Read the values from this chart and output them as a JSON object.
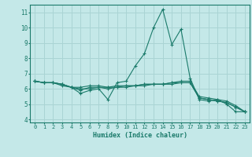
{
  "xlabel": "Humidex (Indice chaleur)",
  "xlim": [
    -0.5,
    23.5
  ],
  "ylim": [
    3.8,
    11.5
  ],
  "xticks": [
    0,
    1,
    2,
    3,
    4,
    5,
    6,
    7,
    8,
    9,
    10,
    11,
    12,
    13,
    14,
    15,
    16,
    17,
    18,
    19,
    20,
    21,
    22,
    23
  ],
  "yticks": [
    4,
    5,
    6,
    7,
    8,
    9,
    10,
    11
  ],
  "bg_color": "#c4e8e8",
  "grid_color": "#aad4d4",
  "line_color": "#1a7a6a",
  "series": [
    [
      6.5,
      6.4,
      6.4,
      6.2,
      6.1,
      5.7,
      5.9,
      6.0,
      5.3,
      6.4,
      6.5,
      7.5,
      8.3,
      10.0,
      11.2,
      8.9,
      9.9,
      6.7,
      5.3,
      5.2,
      5.3,
      5.0,
      4.5,
      4.5
    ],
    [
      6.5,
      6.4,
      6.4,
      6.3,
      6.1,
      6.0,
      6.0,
      6.1,
      6.1,
      6.2,
      6.2,
      6.2,
      6.3,
      6.3,
      6.3,
      6.4,
      6.5,
      6.5,
      5.5,
      5.4,
      5.3,
      5.2,
      4.9,
      4.5
    ],
    [
      6.5,
      6.4,
      6.4,
      6.3,
      6.1,
      5.9,
      6.1,
      6.1,
      6.0,
      6.1,
      6.1,
      6.2,
      6.2,
      6.3,
      6.3,
      6.3,
      6.4,
      6.4,
      5.4,
      5.3,
      5.2,
      5.1,
      4.8,
      4.5
    ],
    [
      6.5,
      6.4,
      6.4,
      6.3,
      6.1,
      6.1,
      6.2,
      6.2,
      6.1,
      6.1,
      6.2,
      6.2,
      6.3,
      6.3,
      6.3,
      6.4,
      6.4,
      6.4,
      5.4,
      5.3,
      5.2,
      5.1,
      4.8,
      4.5
    ]
  ]
}
